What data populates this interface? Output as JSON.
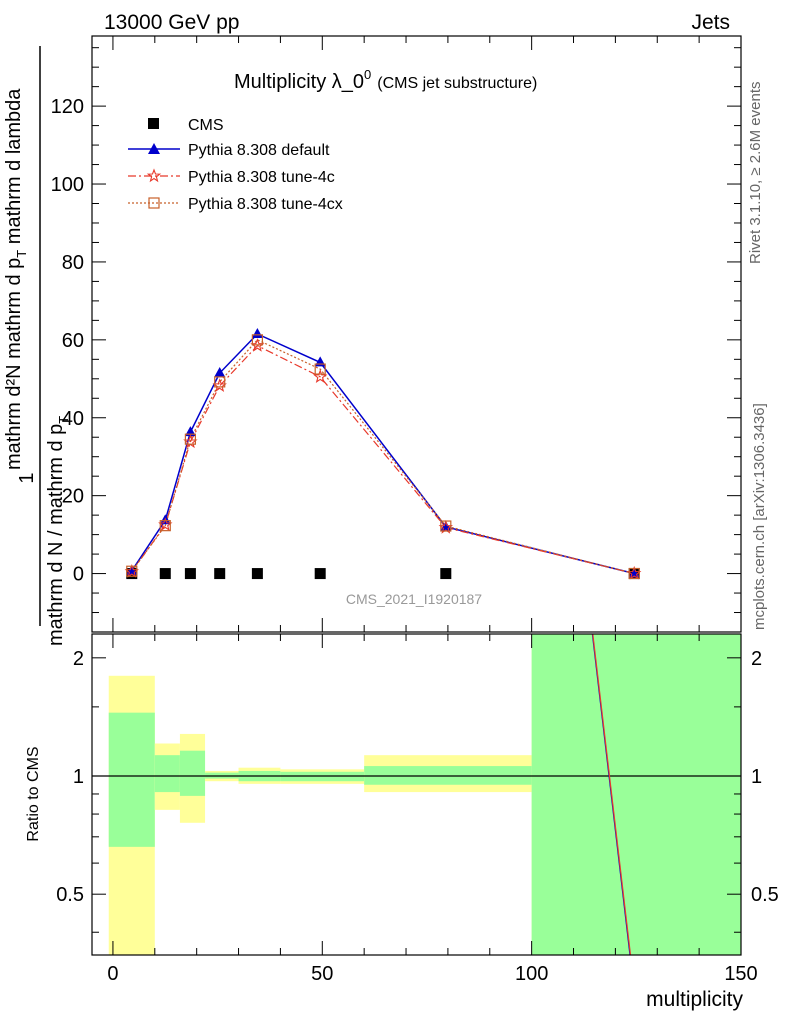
{
  "header": {
    "process": "13000 GeV pp",
    "category": "Jets"
  },
  "side_labels": {
    "rivet": "Rivet 3.1.10, ≥ 2.6M events",
    "mcplots": "mcplots.cern.ch [arXiv:1306.3436]"
  },
  "chart_data": [
    {
      "type": "line",
      "title_main": "Multiplicity λ_0",
      "title_sup": "0",
      "title_sub": "(CMS jet substructure)",
      "analysis_id": "CMS_2021_I1920187",
      "ylabel_numerator": "mathrm d²N",
      "ylabel_num_prefix": "1",
      "ylabel_denominator": "mathrm d N / mathrm d p",
      "ylabel_num_main": "mathrm d p",
      "ylabel_num_suffix": " mathrm d lambda",
      "ylabel_sub": "T",
      "ylim": [
        -15,
        138
      ],
      "xlim": [
        -5,
        150
      ],
      "yticks": [
        0,
        20,
        40,
        60,
        80,
        100,
        120
      ],
      "x": [
        4.5,
        12.5,
        18.5,
        25.5,
        34.5,
        49.5,
        79.5,
        124.5
      ],
      "series": [
        {
          "name": "CMS",
          "color": "#000000",
          "marker": "square",
          "values": [
            0,
            0,
            0,
            0,
            0,
            0,
            0,
            0
          ]
        },
        {
          "name": "Pythia 8.308 default",
          "color": "#0000cc",
          "marker": "triangle",
          "dash": "",
          "values": [
            0.7,
            13.7,
            36.3,
            51.5,
            61.5,
            54.2,
            12.0,
            0.02
          ]
        },
        {
          "name": "Pythia 8.308 tune-4c",
          "color": "#e8392b",
          "marker": "star",
          "dash": "8,3,2,3",
          "values": [
            0.5,
            12.5,
            33.8,
            48.2,
            58.5,
            50.5,
            11.8,
            0.02
          ]
        },
        {
          "name": "Pythia 8.308 tune-4cx",
          "color": "#c8602a",
          "marker": "open-square",
          "dash": "2,2",
          "values": [
            0.6,
            12.3,
            34.5,
            49.2,
            60.0,
            52.5,
            12.2,
            0.02
          ]
        }
      ]
    },
    {
      "type": "area",
      "ylabel": "Ratio to CMS",
      "xlabel": "multiplicity",
      "ylim": [
        0.35,
        2.3
      ],
      "xlim": [
        -5,
        150
      ],
      "scale": "log",
      "yticks": [
        0.5,
        1,
        2
      ],
      "xticks": [
        0,
        50,
        100,
        150
      ],
      "reference": 1,
      "colors": {
        "stat": "#99ff99",
        "total": "#ffff99"
      },
      "bins": [
        {
          "x0": -1,
          "x1": 10,
          "stat": [
            0.66,
            1.45
          ],
          "total": [
            0.35,
            1.8
          ]
        },
        {
          "x0": 10,
          "x1": 16,
          "stat": [
            0.91,
            1.13
          ],
          "total": [
            0.82,
            1.21
          ]
        },
        {
          "x0": 16,
          "x1": 22,
          "stat": [
            0.89,
            1.16
          ],
          "total": [
            0.76,
            1.28
          ]
        },
        {
          "x0": 22,
          "x1": 30,
          "stat": [
            0.985,
            1.02
          ],
          "total": [
            0.97,
            1.03
          ]
        },
        {
          "x0": 30,
          "x1": 40,
          "stat": [
            0.97,
            1.03
          ],
          "total": [
            0.955,
            1.05
          ]
        },
        {
          "x0": 40,
          "x1": 60,
          "stat": [
            0.97,
            1.025
          ],
          "total": [
            0.955,
            1.04
          ]
        },
        {
          "x0": 60,
          "x1": 100,
          "stat": [
            0.95,
            1.06
          ],
          "total": [
            0.91,
            1.13
          ]
        },
        {
          "x0": 100,
          "x1": 150,
          "stat": [
            0.35,
            2.3
          ],
          "total": [
            0.35,
            2.3
          ]
        }
      ],
      "ratio_lines": [
        {
          "name": "Pythia 8.308 default",
          "color": "#0000cc",
          "points": [
            [
              114.5,
              2.3
            ],
            [
              123.5,
              0.35
            ]
          ]
        },
        {
          "name": "Pythia 8.308 tune-4c",
          "color": "#e8392b",
          "points": [
            [
              114.6,
              2.3
            ],
            [
              123.6,
              0.35
            ]
          ]
        }
      ]
    }
  ]
}
